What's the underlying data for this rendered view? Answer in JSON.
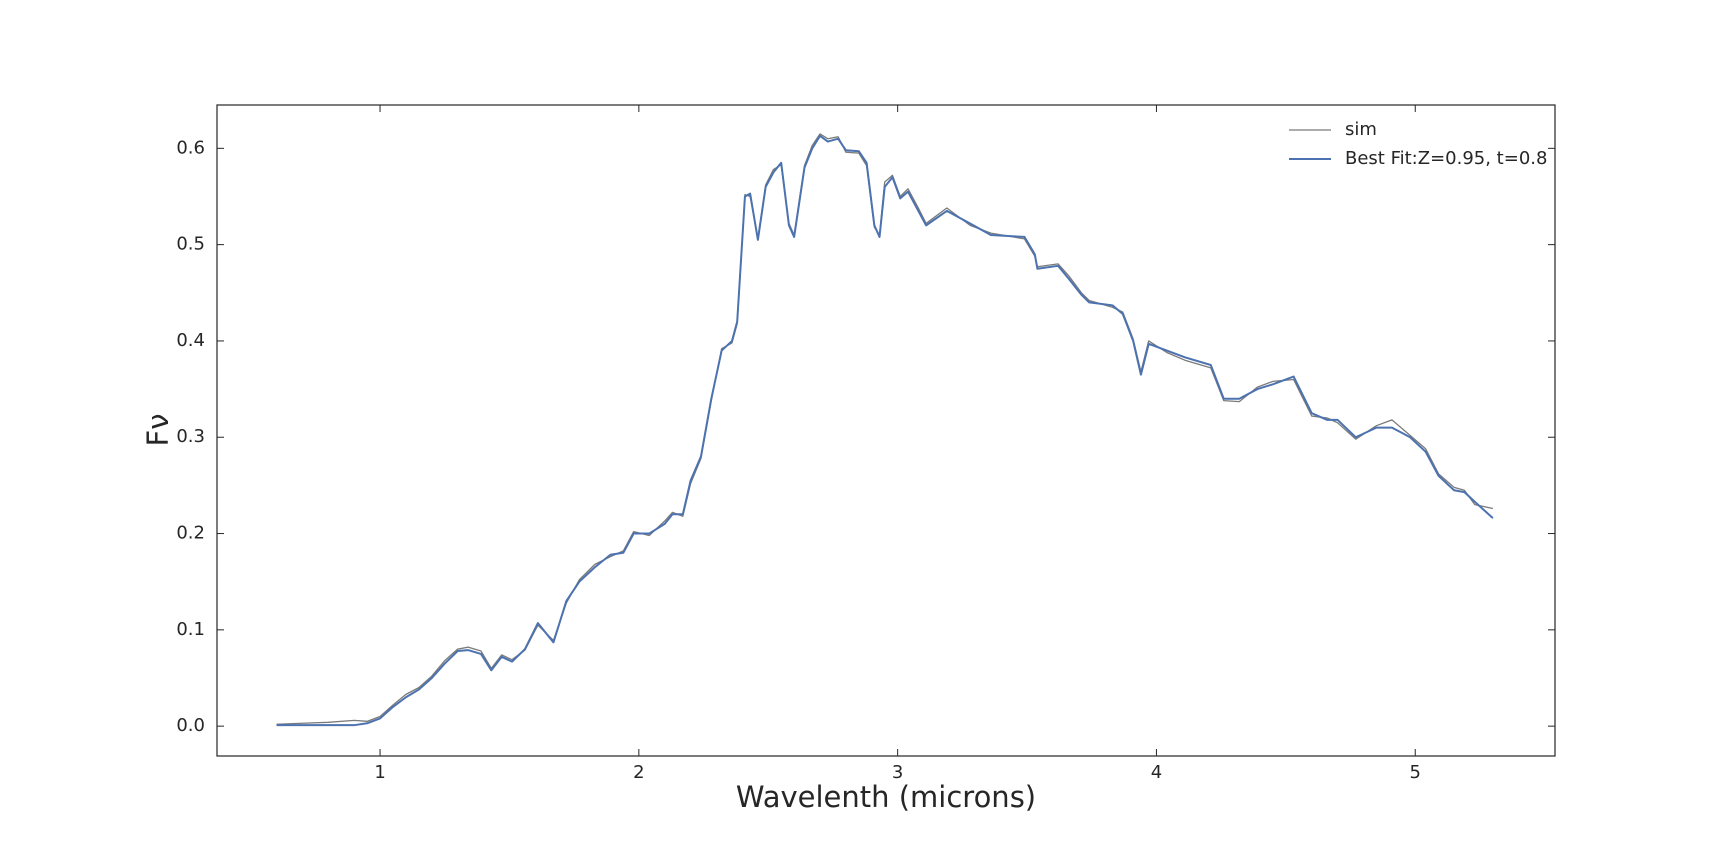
{
  "chart_data": {
    "type": "line",
    "xlabel": "Wavelenth (microns)",
    "ylabel": "Fν",
    "x": [
      0.6,
      0.7,
      0.8,
      0.9,
      0.95,
      1.0,
      1.05,
      1.1,
      1.15,
      1.2,
      1.25,
      1.3,
      1.34,
      1.39,
      1.43,
      1.47,
      1.51,
      1.56,
      1.61,
      1.67,
      1.72,
      1.77,
      1.83,
      1.89,
      1.94,
      1.98,
      2.04,
      2.1,
      2.13,
      2.17,
      2.2,
      2.24,
      2.28,
      2.32,
      2.36,
      2.38,
      2.41,
      2.43,
      2.46,
      2.49,
      2.52,
      2.55,
      2.58,
      2.6,
      2.64,
      2.67,
      2.7,
      2.73,
      2.77,
      2.8,
      2.85,
      2.88,
      2.91,
      2.93,
      2.95,
      2.98,
      3.01,
      3.04,
      3.08,
      3.11,
      3.19,
      3.28,
      3.36,
      3.49,
      3.53,
      3.54,
      3.62,
      3.66,
      3.71,
      3.74,
      3.83,
      3.87,
      3.91,
      3.94,
      3.97,
      4.04,
      4.11,
      4.21,
      4.26,
      4.32,
      4.39,
      4.45,
      4.53,
      4.6,
      4.66,
      4.7,
      4.77,
      4.85,
      4.91,
      4.98,
      5.04,
      5.09,
      5.15,
      5.19,
      5.23,
      5.3
    ],
    "series": [
      {
        "name": "sim",
        "color": "#7a7a7a",
        "width": 1.3,
        "values": [
          0.002,
          0.003,
          0.004,
          0.006,
          0.005,
          0.01,
          0.022,
          0.033,
          0.04,
          0.052,
          0.068,
          0.08,
          0.082,
          0.078,
          0.06,
          0.074,
          0.069,
          0.079,
          0.105,
          0.089,
          0.128,
          0.152,
          0.168,
          0.176,
          0.182,
          0.202,
          0.198,
          0.213,
          0.222,
          0.218,
          0.252,
          0.278,
          0.338,
          0.392,
          0.398,
          0.418,
          0.552,
          0.55,
          0.507,
          0.562,
          0.578,
          0.583,
          0.522,
          0.51,
          0.582,
          0.603,
          0.615,
          0.61,
          0.612,
          0.596,
          0.595,
          0.582,
          0.518,
          0.51,
          0.565,
          0.572,
          0.55,
          0.558,
          0.538,
          0.522,
          0.538,
          0.52,
          0.512,
          0.506,
          0.488,
          0.477,
          0.48,
          0.468,
          0.45,
          0.442,
          0.435,
          0.43,
          0.402,
          0.368,
          0.4,
          0.388,
          0.38,
          0.372,
          0.338,
          0.337,
          0.352,
          0.358,
          0.36,
          0.322,
          0.32,
          0.315,
          0.298,
          0.312,
          0.318,
          0.302,
          0.288,
          0.262,
          0.248,
          0.245,
          0.23,
          0.226
        ]
      },
      {
        "name": "Best Fit:Z=0.95, t=0.8",
        "color": "#4c72b0",
        "width": 2,
        "values": [
          0.001,
          0.001,
          0.001,
          0.001,
          0.003,
          0.008,
          0.02,
          0.03,
          0.038,
          0.05,
          0.065,
          0.078,
          0.079,
          0.075,
          0.058,
          0.072,
          0.067,
          0.08,
          0.107,
          0.087,
          0.13,
          0.15,
          0.165,
          0.178,
          0.18,
          0.2,
          0.2,
          0.21,
          0.22,
          0.22,
          0.255,
          0.28,
          0.34,
          0.39,
          0.4,
          0.42,
          0.55,
          0.553,
          0.505,
          0.56,
          0.575,
          0.585,
          0.52,
          0.508,
          0.58,
          0.6,
          0.613,
          0.607,
          0.61,
          0.598,
          0.597,
          0.585,
          0.52,
          0.508,
          0.56,
          0.57,
          0.548,
          0.555,
          0.535,
          0.52,
          0.535,
          0.522,
          0.51,
          0.508,
          0.49,
          0.475,
          0.478,
          0.465,
          0.448,
          0.44,
          0.437,
          0.428,
          0.4,
          0.365,
          0.397,
          0.39,
          0.383,
          0.375,
          0.34,
          0.34,
          0.35,
          0.355,
          0.363,
          0.325,
          0.318,
          0.318,
          0.3,
          0.31,
          0.31,
          0.3,
          0.285,
          0.26,
          0.245,
          0.243,
          0.233,
          0.216
        ]
      }
    ],
    "xlim": [
      0.37,
      5.54
    ],
    "ylim": [
      -0.031,
      0.645
    ],
    "xticks": [
      1,
      2,
      3,
      4,
      5
    ],
    "yticks": [
      {
        "value": 0,
        "label": "0.0"
      },
      0.1,
      0.2,
      0.3,
      0.4,
      0.5,
      0.6
    ],
    "legend": "upper right"
  }
}
